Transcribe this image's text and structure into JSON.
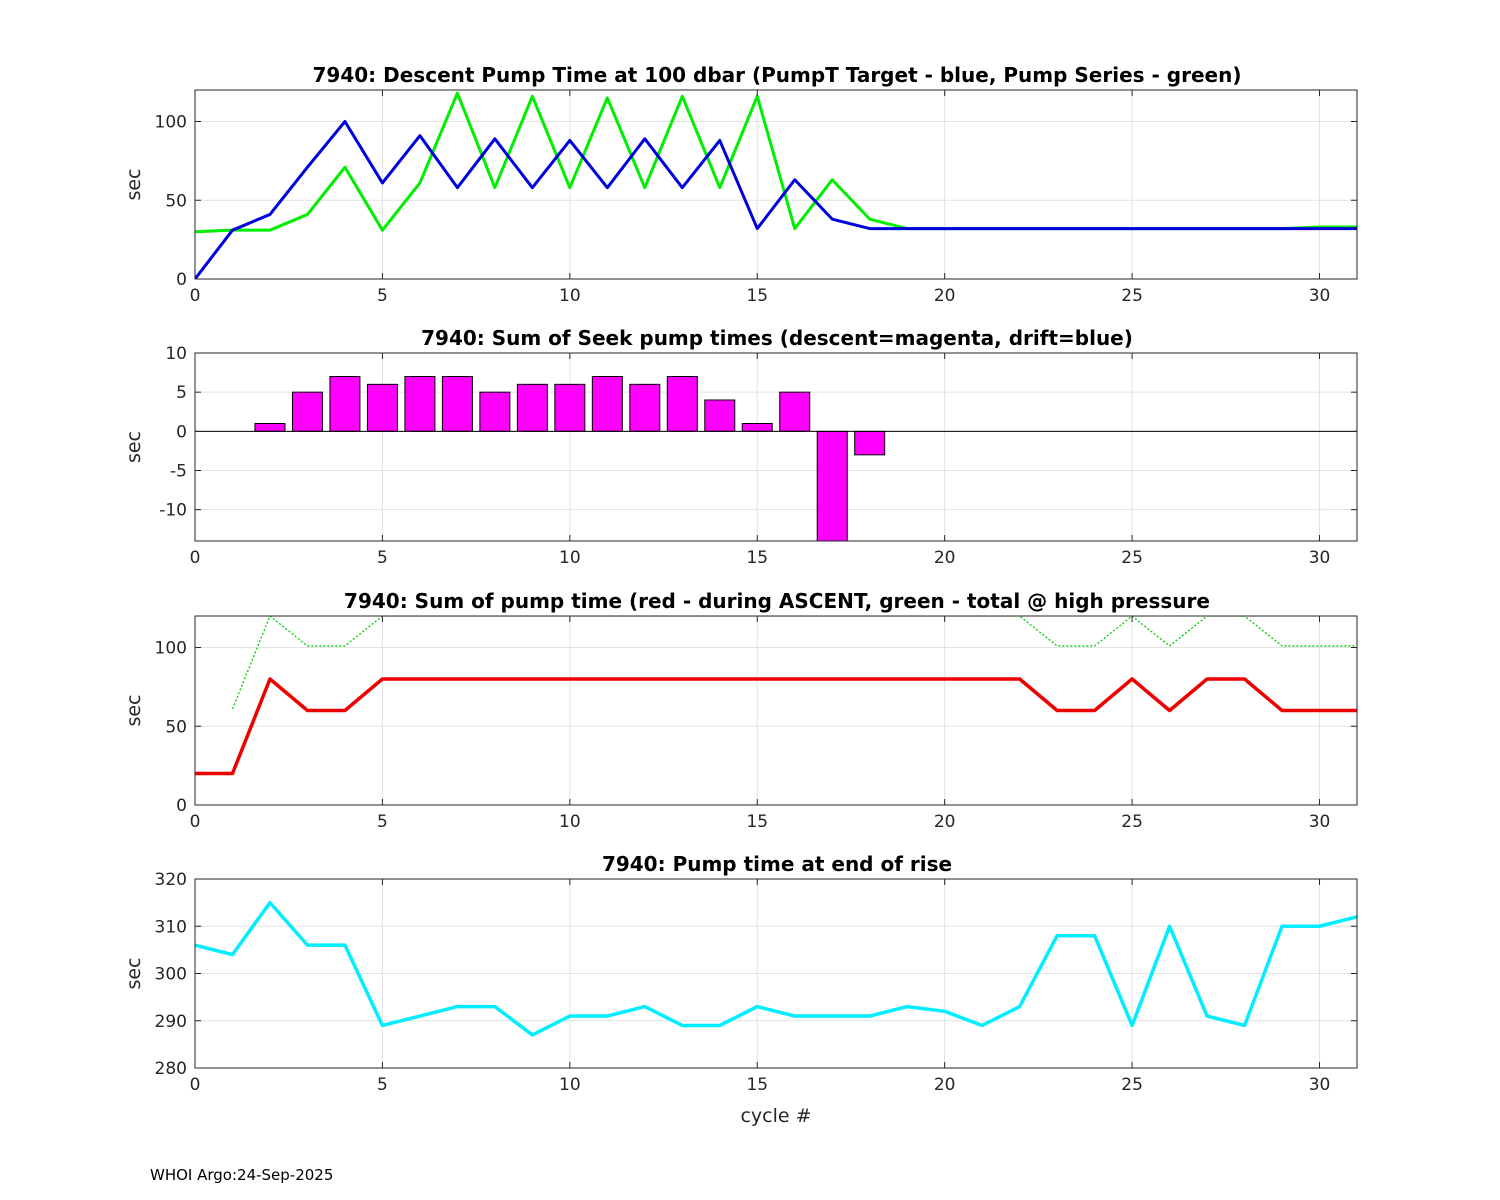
{
  "footer": "WHOI Argo:24-Sep-2025",
  "chart_data": [
    {
      "type": "line",
      "title": "7940: Descent Pump Time at 100 dbar (PumpT Target - blue, Pump Series - green)",
      "xlabel": "",
      "ylabel": "sec",
      "xlim": [
        0,
        31
      ],
      "ylim": [
        0,
        120
      ],
      "xticks": [
        0,
        5,
        10,
        15,
        20,
        25,
        30
      ],
      "yticks": [
        0,
        50,
        100
      ],
      "grid": true,
      "series": [
        {
          "color": "#00ee00",
          "dash": "",
          "width": 3,
          "x": [
            0,
            1,
            2,
            3,
            4,
            5,
            6,
            7,
            8,
            9,
            10,
            11,
            12,
            13,
            14,
            15,
            16,
            17,
            18,
            19,
            20,
            21,
            22,
            23,
            24,
            25,
            26,
            27,
            28,
            29,
            30,
            31
          ],
          "y": [
            30,
            31,
            31,
            41,
            71,
            31,
            61,
            118,
            58,
            116,
            58,
            115,
            58,
            116,
            58,
            116,
            32,
            63,
            38,
            32,
            32,
            32,
            32,
            32,
            32,
            32,
            32,
            32,
            32,
            32,
            33,
            33
          ]
        },
        {
          "color": "#0000dd",
          "dash": "",
          "width": 3,
          "x": [
            0,
            1,
            2,
            3,
            4,
            5,
            6,
            7,
            8,
            9,
            10,
            11,
            12,
            13,
            14,
            15,
            16,
            17,
            18,
            19,
            20,
            21,
            22,
            23,
            24,
            25,
            26,
            27,
            28,
            29,
            30,
            31
          ],
          "y": [
            0,
            31,
            41,
            71,
            100,
            61,
            91,
            58,
            89,
            58,
            88,
            58,
            89,
            58,
            88,
            32,
            63,
            38,
            32,
            32,
            32,
            32,
            32,
            32,
            32,
            32,
            32,
            32,
            32,
            32,
            32,
            32
          ]
        }
      ]
    },
    {
      "type": "bar",
      "title": "7940: Sum of Seek pump times (descent=magenta, drift=blue)",
      "xlabel": "",
      "ylabel": "sec",
      "xlim": [
        0,
        31
      ],
      "ylim": [
        -14,
        10
      ],
      "xticks": [
        0,
        5,
        10,
        15,
        20,
        25,
        30
      ],
      "yticks": [
        -10,
        -5,
        0,
        5,
        10
      ],
      "ytick_labels": [
        "-10",
        "-5",
        "0",
        "5",
        "10"
      ],
      "grid": true,
      "bar_color": "#ff00ff",
      "x": [
        2,
        3,
        4,
        5,
        6,
        7,
        8,
        9,
        10,
        11,
        12,
        13,
        14,
        15,
        16,
        17,
        18
      ],
      "values": [
        1,
        5,
        7,
        6,
        7,
        7,
        5,
        6,
        6,
        7,
        6,
        7,
        4,
        1,
        5,
        -14,
        -3
      ]
    },
    {
      "type": "line",
      "title": "7940: Sum of pump time (red - during ASCENT, green - total @ high pressure",
      "xlabel": "",
      "ylabel": "sec",
      "xlim": [
        0,
        31
      ],
      "ylim": [
        0,
        120
      ],
      "xticks": [
        0,
        5,
        10,
        15,
        20,
        25,
        30
      ],
      "yticks": [
        0,
        50,
        100
      ],
      "grid": true,
      "series": [
        {
          "color": "#00cc00",
          "dash": "2,2",
          "width": 1.3,
          "x": [
            1,
            2,
            3,
            4,
            5,
            6,
            7,
            8,
            9,
            10,
            11,
            12,
            13,
            14,
            15,
            16,
            17,
            18,
            19,
            20,
            21,
            22,
            23,
            24,
            25,
            26,
            27,
            28,
            29,
            30,
            31
          ],
          "y": [
            61,
            120,
            101,
            101,
            120,
            120,
            120,
            120,
            120,
            120,
            120,
            120,
            120,
            120,
            120,
            120,
            120,
            120,
            120,
            120,
            120,
            120,
            101,
            101,
            120,
            101,
            120,
            120,
            101,
            101,
            101
          ]
        },
        {
          "color": "#ee0000",
          "dash": "",
          "width": 3.5,
          "x": [
            0,
            1,
            2,
            3,
            4,
            5,
            6,
            7,
            8,
            9,
            10,
            11,
            12,
            13,
            14,
            15,
            16,
            17,
            18,
            19,
            20,
            21,
            22,
            23,
            24,
            25,
            26,
            27,
            28,
            29,
            30,
            31
          ],
          "y": [
            20,
            20,
            80,
            60,
            60,
            80,
            80,
            80,
            80,
            80,
            80,
            80,
            80,
            80,
            80,
            80,
            80,
            80,
            80,
            80,
            80,
            80,
            80,
            60,
            60,
            80,
            60,
            80,
            80,
            60,
            60,
            60
          ]
        }
      ]
    },
    {
      "type": "line",
      "title": "7940: Pump time at end of rise",
      "xlabel": "cycle #",
      "ylabel": "sec",
      "xlim": [
        0,
        31
      ],
      "ylim": [
        280,
        320
      ],
      "xticks": [
        0,
        5,
        10,
        15,
        20,
        25,
        30
      ],
      "yticks": [
        280,
        290,
        300,
        310,
        320
      ],
      "grid": true,
      "series": [
        {
          "color": "#00eeff",
          "dash": "",
          "width": 3.5,
          "x": [
            0,
            1,
            2,
            3,
            4,
            5,
            6,
            7,
            8,
            9,
            10,
            11,
            12,
            13,
            14,
            15,
            16,
            17,
            18,
            19,
            20,
            21,
            22,
            23,
            24,
            25,
            26,
            27,
            28,
            29,
            30,
            31
          ],
          "y": [
            306,
            304,
            315,
            306,
            306,
            289,
            291,
            293,
            293,
            287,
            291,
            291,
            293,
            289,
            289,
            293,
            291,
            291,
            291,
            293,
            292,
            289,
            293,
            308,
            308,
            289,
            310,
            291,
            289,
            310,
            310,
            312
          ]
        }
      ]
    }
  ]
}
